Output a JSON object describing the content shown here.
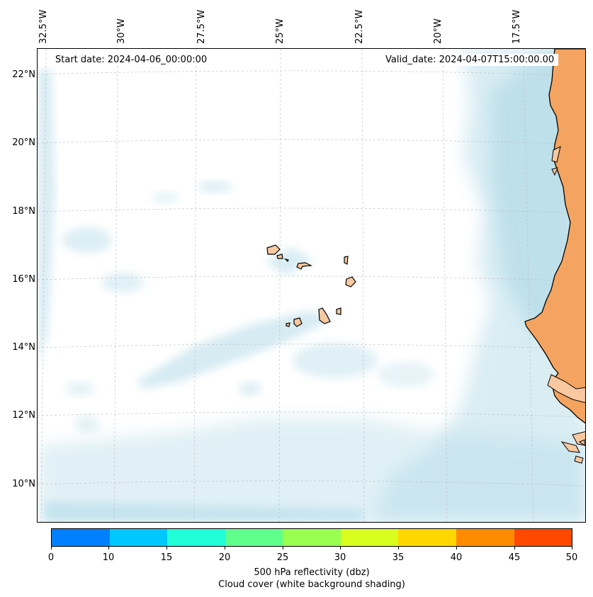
{
  "map": {
    "start_date": "Start date: 2024-04-06_00:00:00",
    "valid_date": "Valid_date: 2024-04-07T15:00:00.00",
    "lon_labels": [
      "32.5°W",
      "30°W",
      "27.5°W",
      "25°W",
      "22.5°W",
      "20°W",
      "17.5°W"
    ],
    "lat_labels": [
      "22°N",
      "20°N",
      "18°N",
      "16°N",
      "14°N",
      "12°N",
      "10°N"
    ],
    "land_color": "#f4a460",
    "cloud_color": "#add8e6",
    "islands_color": "#f8c8a0"
  },
  "colorbar": {
    "ticks": [
      "0",
      "10",
      "15",
      "20",
      "25",
      "30",
      "35",
      "40",
      "45",
      "50"
    ],
    "colors": [
      "#0080ff",
      "#00c8ff",
      "#20ffd8",
      "#60ff8c",
      "#98ff50",
      "#d8ff20",
      "#ffd700",
      "#ff8c00",
      "#ff4800"
    ],
    "label": "500 hPa reflectivity (dbz)",
    "sublabel": "Cloud cover (white background shading)"
  }
}
